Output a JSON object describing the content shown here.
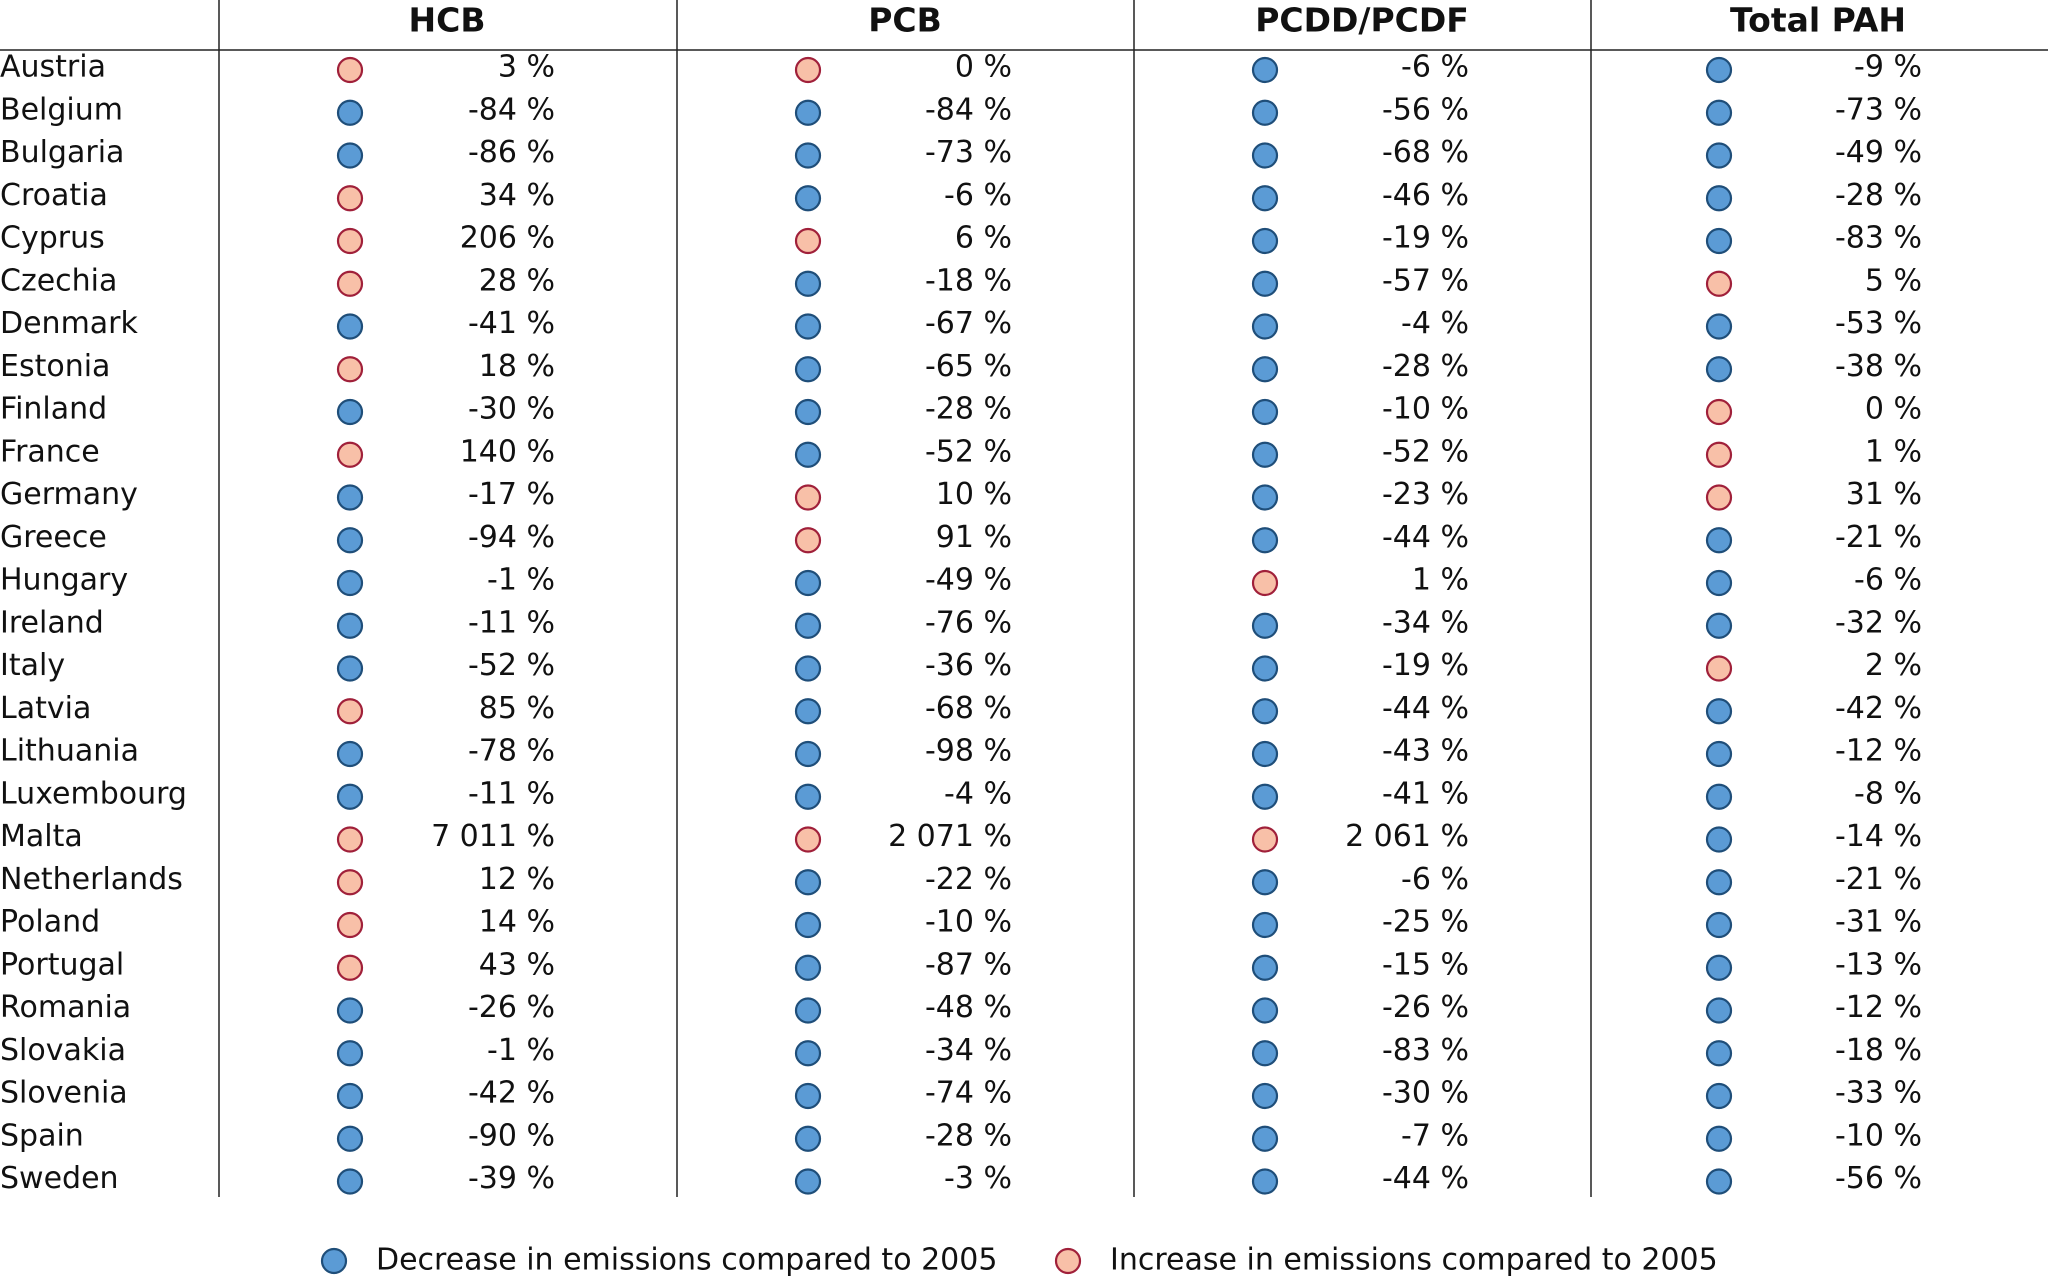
{
  "table": {
    "columns": [
      "HCB",
      "PCB",
      "PCDD/PCDF",
      "Total PAH"
    ],
    "rows": [
      [
        "Austria",
        "3 %",
        "0 %",
        "-6 %",
        "-9 %"
      ],
      [
        "Belgium",
        "-84 %",
        "-84 %",
        "-56 %",
        "-73 %"
      ],
      [
        "Bulgaria",
        "-86 %",
        "-73 %",
        "-68 %",
        "-49 %"
      ],
      [
        "Croatia",
        "34 %",
        "-6 %",
        "-46 %",
        "-28 %"
      ],
      [
        "Cyprus",
        "206 %",
        "6 %",
        "-19 %",
        "-83 %"
      ],
      [
        "Czechia",
        "28 %",
        "-18 %",
        "-57 %",
        "5 %"
      ],
      [
        "Denmark",
        "-41 %",
        "-67 %",
        "-4 %",
        "-53 %"
      ],
      [
        "Estonia",
        "18 %",
        "-65 %",
        "-28 %",
        "-38 %"
      ],
      [
        "Finland",
        "-30 %",
        "-28 %",
        "-10 %",
        "0 %"
      ],
      [
        "France",
        "140 %",
        "-52 %",
        "-52 %",
        "1 %"
      ],
      [
        "Germany",
        "-17 %",
        "10 %",
        "-23 %",
        "31 %"
      ],
      [
        "Greece",
        "-94 %",
        "91 %",
        "-44 %",
        "-21 %"
      ],
      [
        "Hungary",
        "-1 %",
        "-49 %",
        "1 %",
        "-6 %"
      ],
      [
        "Ireland",
        "-11 %",
        "-76 %",
        "-34 %",
        "-32 %"
      ],
      [
        "Italy",
        "-52 %",
        "-36 %",
        "-19 %",
        "2 %"
      ],
      [
        "Latvia",
        "85 %",
        "-68 %",
        "-44 %",
        "-42 %"
      ],
      [
        "Lithuania",
        "-78 %",
        "-98 %",
        "-43 %",
        "-12 %"
      ],
      [
        "Luxembourg",
        "-11 %",
        "-4 %",
        "-41 %",
        "-8 %"
      ],
      [
        "Malta",
        "7 011 %",
        "2 071 %",
        "2 061 %",
        "-14 %"
      ],
      [
        "Netherlands",
        "12 %",
        "-22 %",
        "-6 %",
        "-21 %"
      ],
      [
        "Poland",
        "14 %",
        "-10 %",
        "-25 %",
        "-31 %"
      ],
      [
        "Portugal",
        "43 %",
        "-87 %",
        "-15 %",
        "-13 %"
      ],
      [
        "Romania",
        "-26 %",
        "-48 %",
        "-26 %",
        "-12 %"
      ],
      [
        "Slovakia",
        "-1 %",
        "-34 %",
        "-83 %",
        "-18 %"
      ],
      [
        "Slovenia",
        "-42 %",
        "-74 %",
        "-30 %",
        "-33 %"
      ],
      [
        "Spain",
        "-90 %",
        "-28 %",
        "-7 %",
        "-10 %"
      ],
      [
        "Sweden",
        "-39 %",
        "-3 %",
        "-44 %",
        "-56 %"
      ]
    ]
  },
  "legend": [
    "Decrease in emissions compared to 2005",
    "Increase in emissions compared to 2005"
  ]
}
